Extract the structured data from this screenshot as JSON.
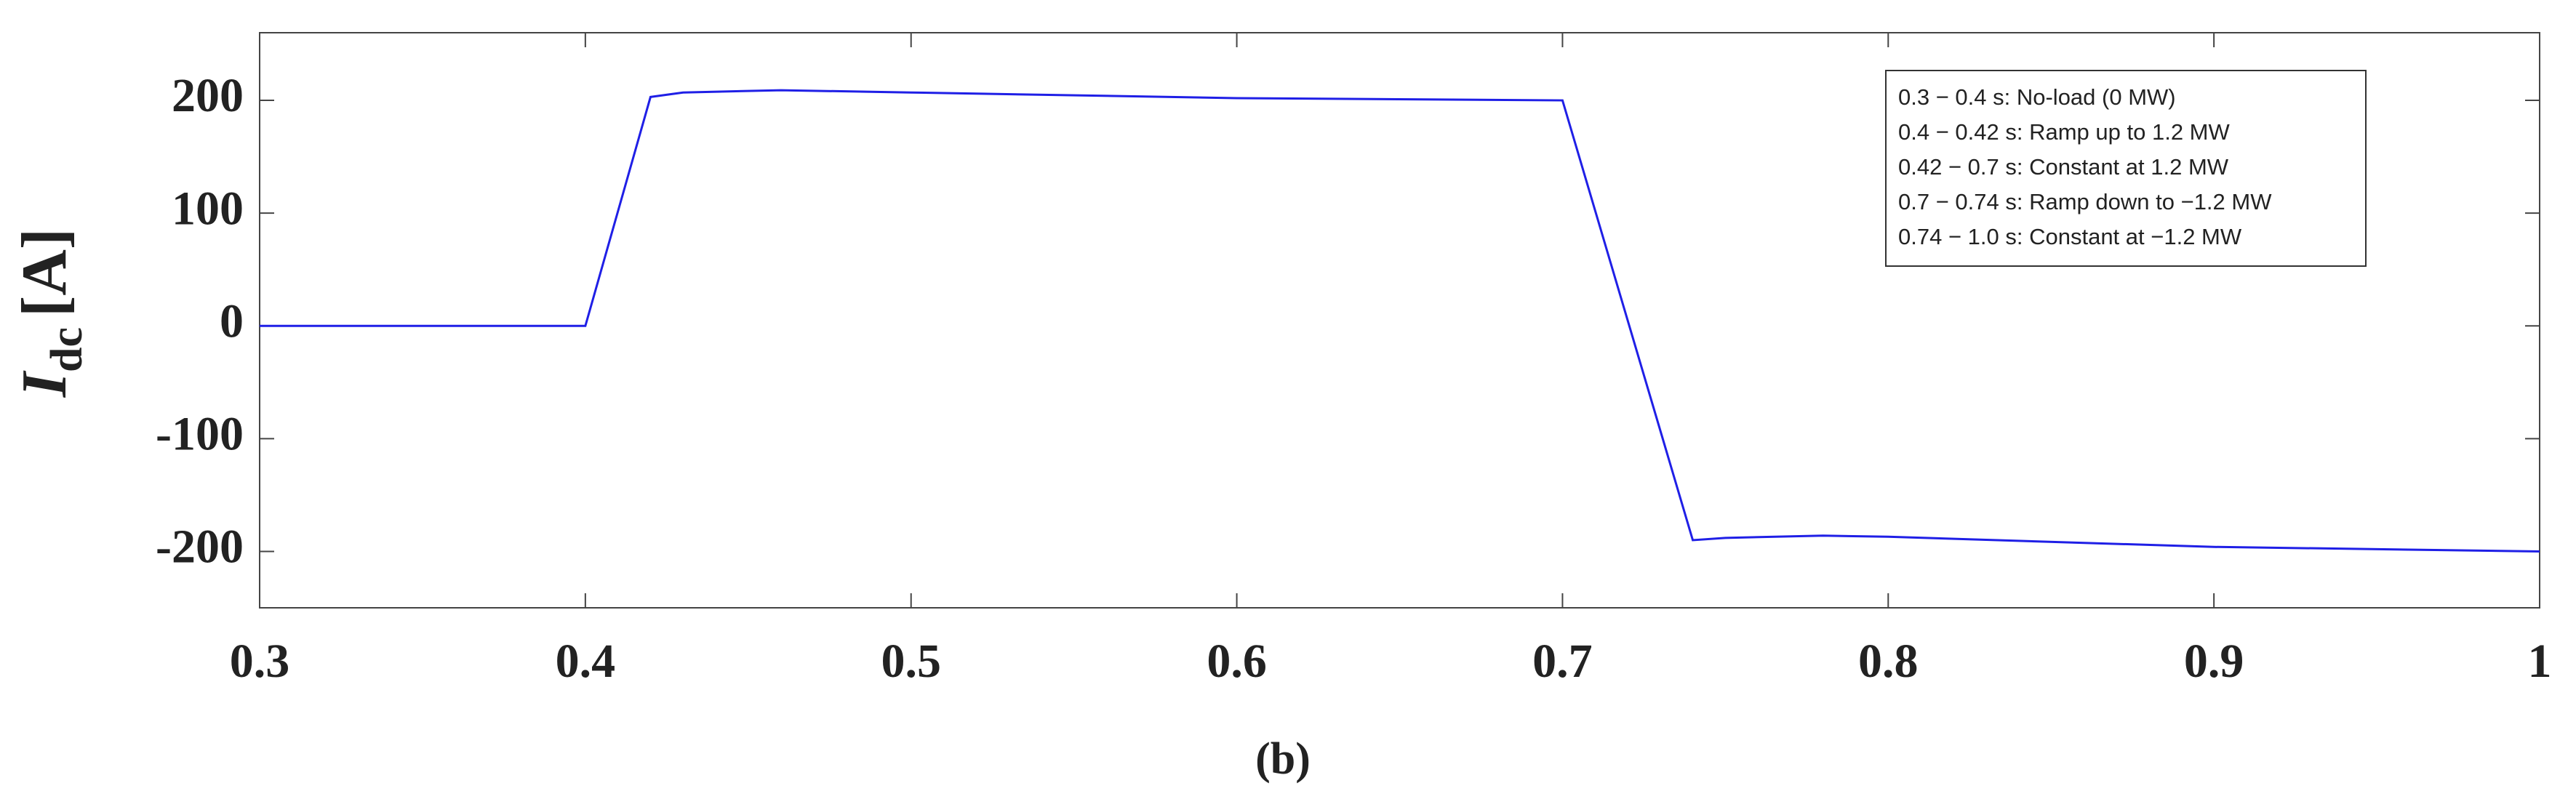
{
  "chart_data": {
    "type": "line",
    "ylabel": {
      "main": "I",
      "sub": "dc",
      "unit": "[A]"
    },
    "caption": "(b)",
    "annotations": [
      "0.3 − 0.4 s: No-load (0 MW)",
      "0.4 − 0.42 s: Ramp up to 1.2 MW",
      "0.42 − 0.7 s: Constant at 1.2 MW",
      "0.7 − 0.74 s: Ramp down to −1.2 MW",
      "0.74 − 1.0 s: Constant at −1.2 MW"
    ],
    "x": [
      0.3,
      0.4,
      0.42,
      0.43,
      0.46,
      0.5,
      0.6,
      0.7,
      0.74,
      0.75,
      0.78,
      0.8,
      0.9,
      1.0
    ],
    "values": [
      0,
      0,
      203,
      207,
      209,
      207,
      202,
      200,
      -190,
      -188,
      -186,
      -187,
      -196,
      -200
    ],
    "color": "#1f1fe6",
    "xlim": [
      0.3,
      1
    ],
    "xticks": [
      0.3,
      0.4,
      0.5,
      0.6,
      0.7,
      0.8,
      0.9,
      1
    ],
    "ylim": [
      -250,
      260
    ],
    "yticks": [
      -200,
      -100,
      0,
      100,
      200
    ]
  }
}
